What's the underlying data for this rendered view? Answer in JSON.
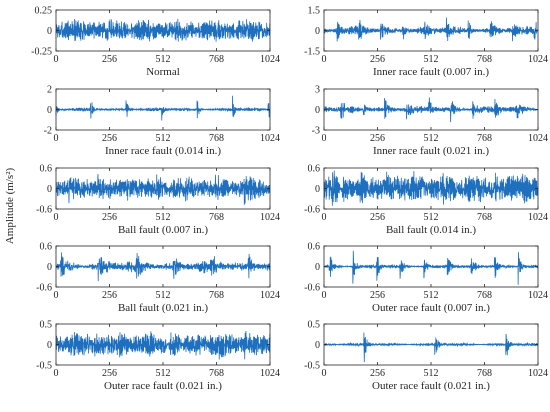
{
  "figure": {
    "ylabel": "Amplitude (m/s²)",
    "signal_color": "#1f6fbf"
  },
  "chart_data": [
    {
      "type": "line",
      "title": "Normal",
      "xlim": [
        0,
        1024
      ],
      "xticks": [
        0,
        256,
        512,
        768,
        1024
      ],
      "ylim": [
        -0.25,
        0.25
      ],
      "yticks": [
        -0.25,
        0,
        0.25
      ],
      "ytick_labels": [
        "-0.25",
        "0",
        "0.25"
      ],
      "envelope": {
        "pattern": "dense",
        "base": 0.1,
        "impulse_amp": 0,
        "period": 0,
        "offset": 0,
        "decay": 1
      }
    },
    {
      "type": "line",
      "title": "Inner race fault (0.007 in.)",
      "xlim": [
        0,
        1024
      ],
      "xticks": [
        0,
        256,
        512,
        768,
        1024
      ],
      "ylim": [
        -1.5,
        1.5
      ],
      "yticks": [
        -1.5,
        0,
        1.5
      ],
      "ytick_labels": [
        "-1.5",
        "0",
        "1.5"
      ],
      "envelope": {
        "pattern": "impulsive",
        "base": 0.28,
        "impulse_amp": 0.75,
        "period": 105,
        "offset": 60,
        "decay": 12
      }
    },
    {
      "type": "line",
      "title": "Inner race fault (0.014 in.)",
      "xlim": [
        0,
        1024
      ],
      "xticks": [
        0,
        256,
        512,
        768,
        1024
      ],
      "ylim": [
        -2,
        2
      ],
      "yticks": [
        -2,
        0,
        2
      ],
      "ytick_labels": [
        "-2",
        "0",
        "2"
      ],
      "envelope": {
        "pattern": "impulsive",
        "base": 0.15,
        "impulse_amp": 1.05,
        "period": 170,
        "offset": 165,
        "decay": 8
      }
    },
    {
      "type": "line",
      "title": "Inner race fault (0.021 in.)",
      "xlim": [
        0,
        1024
      ],
      "xticks": [
        0,
        256,
        512,
        768,
        1024
      ],
      "ylim": [
        -3,
        3
      ],
      "yticks": [
        -3,
        0,
        3
      ],
      "ytick_labels": [
        "-3",
        "0",
        "3"
      ],
      "envelope": {
        "pattern": "impulsive",
        "base": 0.45,
        "impulse_amp": 1.5,
        "period": 105,
        "offset": 80,
        "decay": 14
      }
    },
    {
      "type": "line",
      "title": "Ball fault (0.007 in.)",
      "xlim": [
        0,
        1024
      ],
      "xticks": [
        0,
        256,
        512,
        768,
        1024
      ],
      "ylim": [
        -0.6,
        0.6
      ],
      "yticks": [
        -0.6,
        0,
        0.6
      ],
      "ytick_labels": [
        "-0.6",
        "0",
        "0.6"
      ],
      "envelope": {
        "pattern": "dense",
        "base": 0.22,
        "impulse_amp": 0.2,
        "period": 140,
        "offset": 60,
        "decay": 20
      }
    },
    {
      "type": "line",
      "title": "Ball fault (0.014 in.)",
      "xlim": [
        0,
        1024
      ],
      "xticks": [
        0,
        256,
        512,
        768,
        1024
      ],
      "ylim": [
        -0.6,
        0.6
      ],
      "yticks": [
        -0.6,
        0,
        0.6
      ],
      "ytick_labels": [
        "-0.6",
        "0",
        "0.6"
      ],
      "envelope": {
        "pattern": "dense",
        "base": 0.28,
        "impulse_amp": 0.18,
        "period": 130,
        "offset": 40,
        "decay": 25
      }
    },
    {
      "type": "line",
      "title": "Ball fault (0.021 in.)",
      "xlim": [
        0,
        1024
      ],
      "xticks": [
        0,
        256,
        512,
        768,
        1024
      ],
      "ylim": [
        -0.6,
        0.6
      ],
      "yticks": [
        -0.6,
        0,
        0.6
      ],
      "ytick_labels": [
        "-0.6",
        "0",
        "0.6"
      ],
      "envelope": {
        "pattern": "impulsive",
        "base": 0.16,
        "impulse_amp": 0.32,
        "period": 180,
        "offset": 200,
        "decay": 18
      }
    },
    {
      "type": "line",
      "title": "Outer race fault (0.007 in.)",
      "xlim": [
        0,
        1024
      ],
      "xticks": [
        0,
        256,
        512,
        768,
        1024
      ],
      "ylim": [
        -0.6,
        0.6
      ],
      "yticks": [
        -0.6,
        0,
        0.6
      ],
      "ytick_labels": [
        "-0.6",
        "0",
        "0.6"
      ],
      "envelope": {
        "pattern": "impulsive",
        "base": 0.05,
        "impulse_amp": 0.45,
        "period": 113,
        "offset": 25,
        "decay": 10
      }
    },
    {
      "type": "line",
      "title": "Outer race fault (0.021 in.)",
      "xlim": [
        0,
        1024
      ],
      "xticks": [
        0,
        256,
        512,
        768,
        1024
      ],
      "ylim": [
        -0.5,
        0.5
      ],
      "yticks": [
        -0.5,
        0,
        0.5
      ],
      "ytick_labels": [
        "-0.5",
        "0",
        "0.5"
      ],
      "envelope": {
        "pattern": "dense",
        "base": 0.2,
        "impulse_amp": 0.12,
        "period": 120,
        "offset": 60,
        "decay": 25
      }
    },
    {
      "type": "line",
      "title": "Outer race fault (0.021 in.)",
      "xlim": [
        0,
        1024
      ],
      "xticks": [
        0,
        256,
        512,
        768,
        1024
      ],
      "ylim": [
        -0.5,
        0.5
      ],
      "yticks": [
        -0.5,
        0,
        0.5
      ],
      "ytick_labels": [
        "-0.5",
        "0",
        "0.5"
      ],
      "envelope": {
        "pattern": "impulsive",
        "base": 0.03,
        "impulse_amp": 0.45,
        "period": 340,
        "offset": 190,
        "decay": 10
      }
    }
  ]
}
